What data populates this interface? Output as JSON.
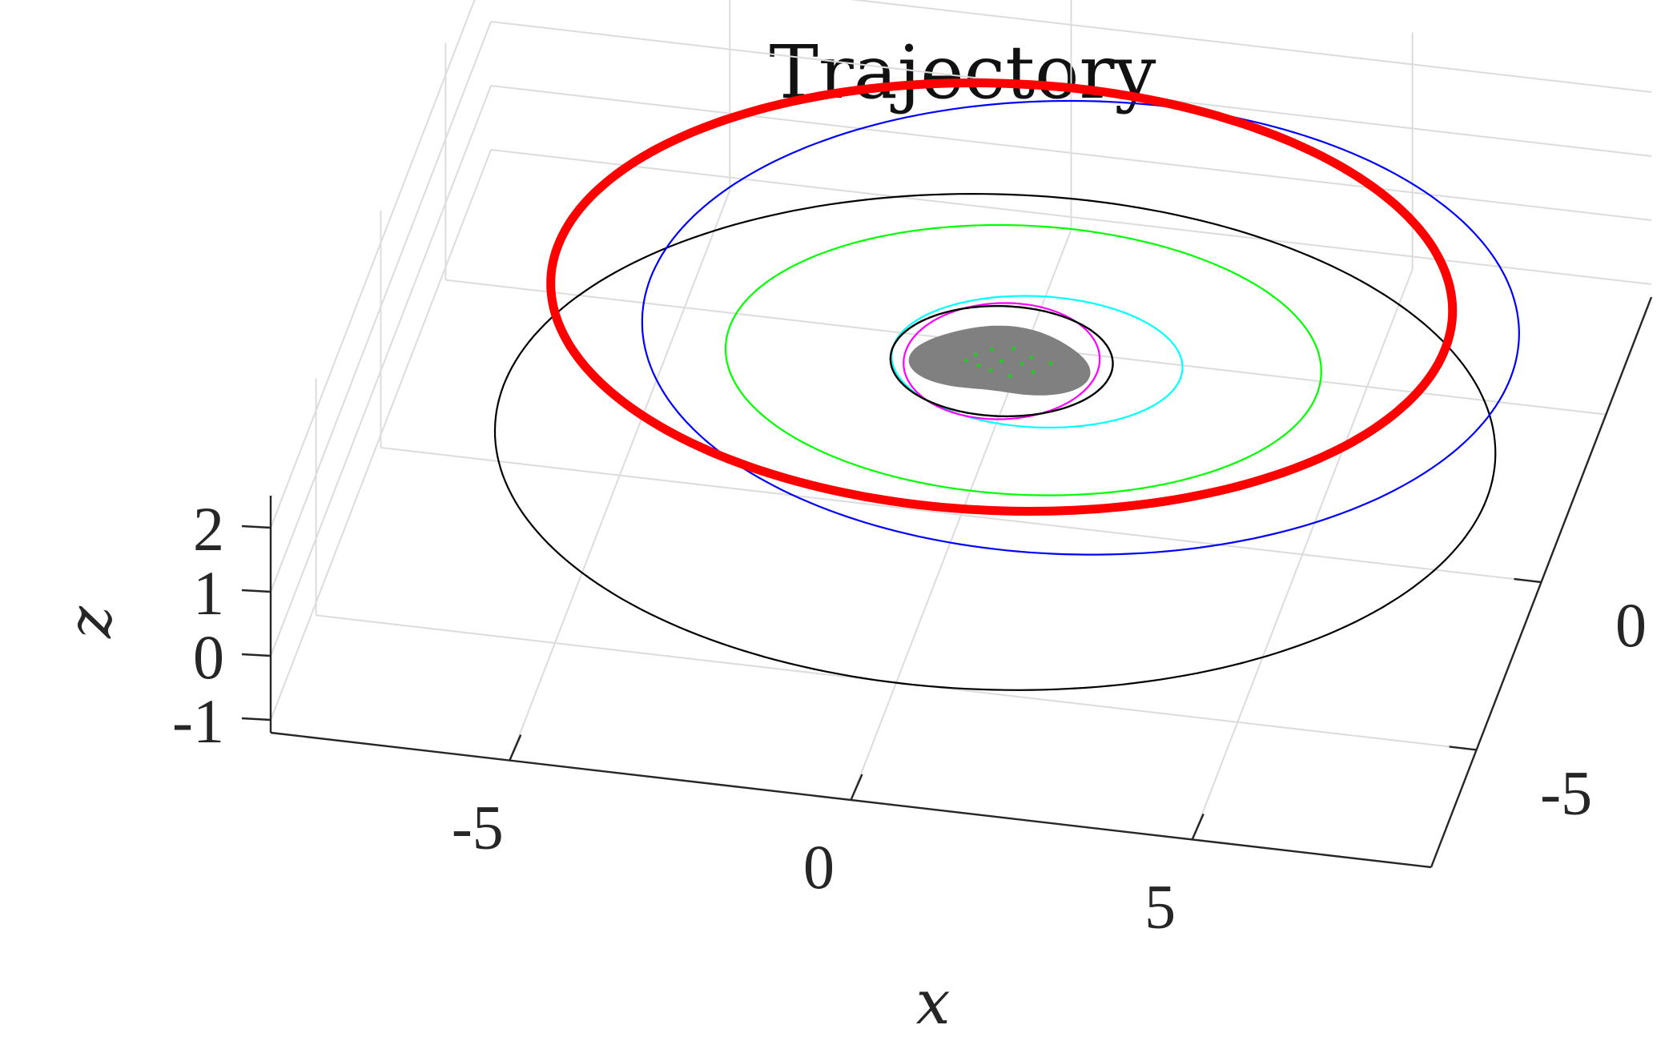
{
  "chart_data": {
    "type": "line",
    "title": "Trajectory",
    "xlabel": "x",
    "ylabel": "",
    "zlabel": "z",
    "xlim": [
      -8.5,
      8.5
    ],
    "ylim": [
      -8.5,
      8.5
    ],
    "zlim": [
      -1.2,
      2.5
    ],
    "x_ticks": [
      "-5",
      "0",
      "5"
    ],
    "y_ticks": [
      "-5",
      "0"
    ],
    "z_ticks": [
      "-1",
      "0",
      "1",
      "2"
    ],
    "grid": true,
    "colors": {
      "red": "#ff0000",
      "blue": "#0000ff",
      "black": "#000000",
      "green": "#00ff00",
      "cyan": "#00ffff",
      "magenta": "#ff00ff",
      "body": "#808080",
      "points": "#22cc22"
    },
    "series": [
      {
        "color": "red",
        "shape": "orbit",
        "cx": 0.5,
        "cy": 0.5,
        "rx": 6.5,
        "ry": 6.2,
        "z": 2.0,
        "width": 11
      },
      {
        "color": "blue",
        "shape": "orbit",
        "cx": 1.6,
        "cy": 0.8,
        "rx": 6.3,
        "ry": 6.6,
        "z": 1.5,
        "width": 2.2
      },
      {
        "color": "black",
        "shape": "orbit",
        "cx": 0.5,
        "cy": 0.0,
        "rx": 7.2,
        "ry": 7.2,
        "z": 0.0,
        "width": 2.2
      },
      {
        "color": "green",
        "shape": "orbit",
        "cx": 0.8,
        "cy": 0.6,
        "rx": 4.3,
        "ry": 3.9,
        "z": 1.0,
        "width": 2.2
      },
      {
        "color": "cyan",
        "shape": "orbit",
        "cx": 1.0,
        "cy": 0.6,
        "rx": 2.1,
        "ry": 1.9,
        "z": 1.0,
        "width": 2.2
      },
      {
        "color": "magenta",
        "shape": "orbit",
        "cx": 0.5,
        "cy": 0.5,
        "rx": 1.4,
        "ry": 1.7,
        "z": 1.0,
        "width": 2.2
      },
      {
        "color": "black",
        "shape": "orbit",
        "cx": 0.5,
        "cy": 0.5,
        "rx": 1.6,
        "ry": 1.6,
        "z": 1.0,
        "width": 2.4
      }
    ]
  }
}
